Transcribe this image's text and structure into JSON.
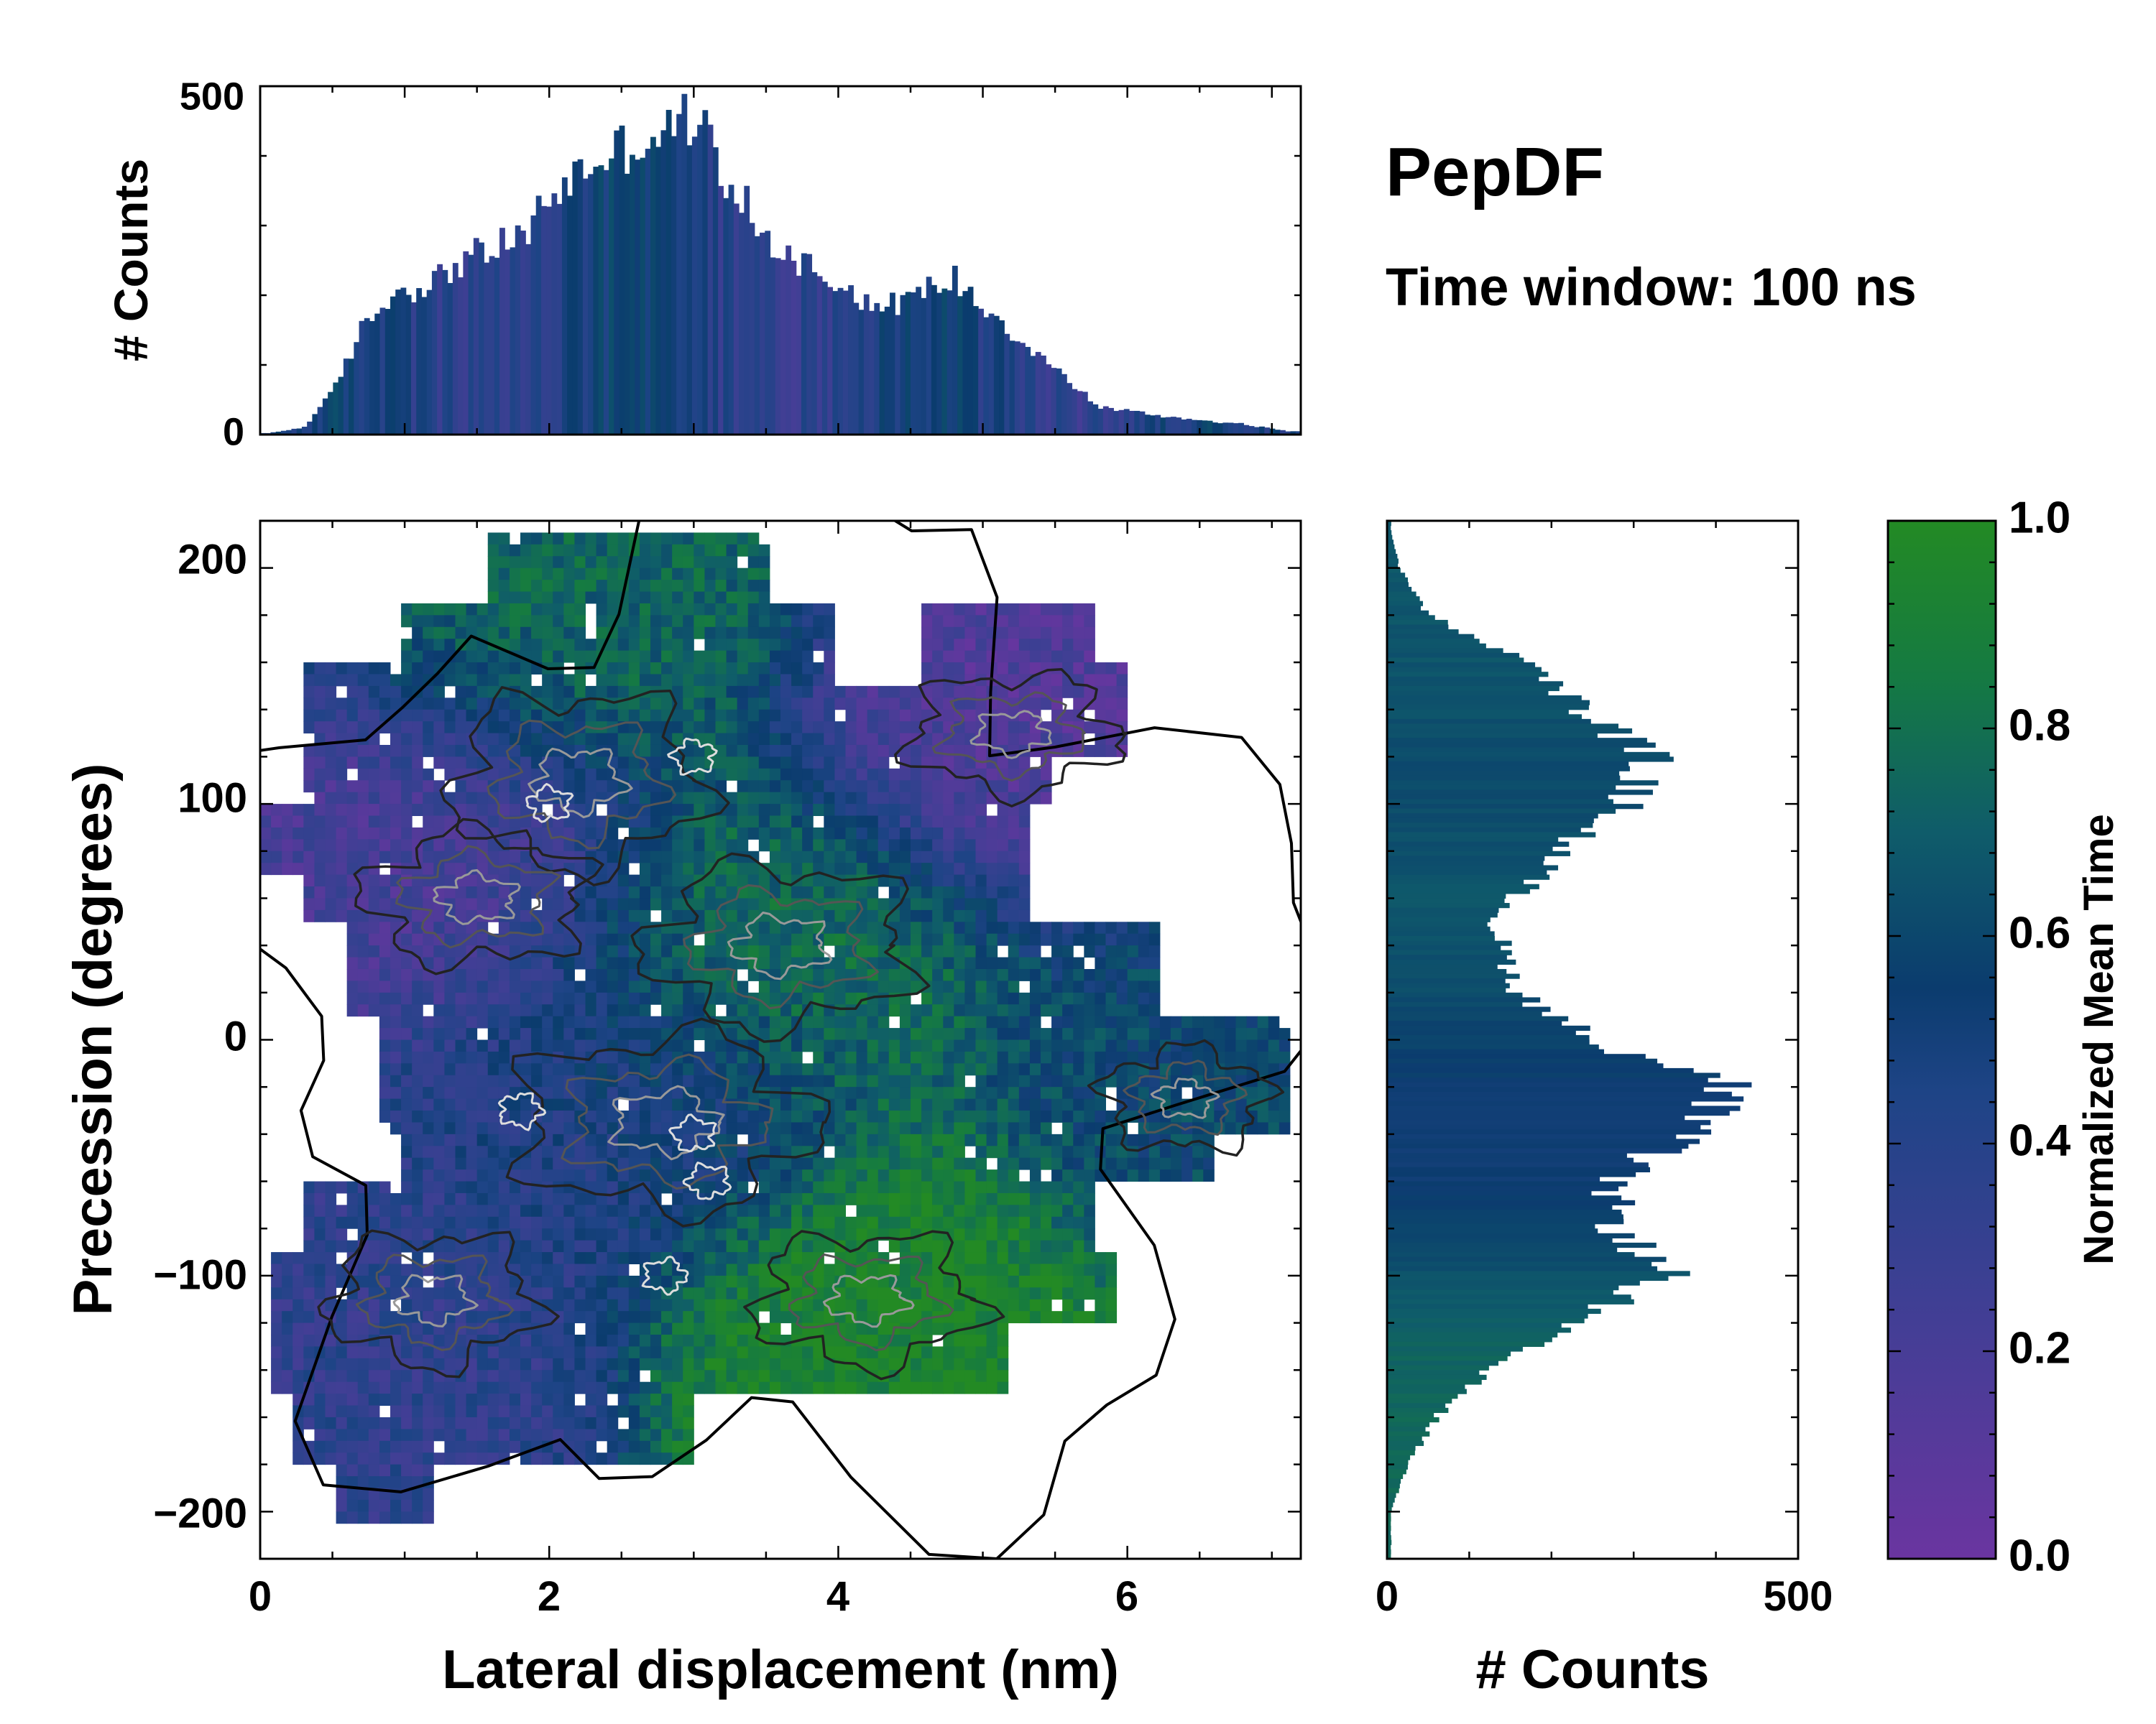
{
  "figure": {
    "title": "PepDF",
    "subtitle": "Time window: 100 ns"
  },
  "colors": {
    "purple": "#6a35a0",
    "blue": "#2a4a8c",
    "navy": "#0e3a6a",
    "teal": "#11606a",
    "green": "#1e8a2a",
    "frame": "#000000"
  },
  "chart_data": [
    {
      "name": "top-histogram",
      "type": "bar",
      "xlabel": "",
      "ylabel": "# Counts",
      "xlim": [
        0,
        7.2
      ],
      "ylim": [
        0,
        500
      ],
      "yticks": [
        "0",
        "500"
      ],
      "x_profile": [
        0.05,
        0.3,
        0.5,
        0.7,
        0.9,
        1.2,
        1.4,
        1.8,
        2.0,
        2.3,
        2.6,
        2.8,
        3.0,
        3.2,
        3.5,
        3.9,
        4.3,
        4.8,
        5.3,
        5.8,
        6.3,
        6.8,
        7.1
      ],
      "y_profile": [
        2,
        10,
        60,
        150,
        200,
        220,
        250,
        280,
        340,
        390,
        420,
        430,
        460,
        380,
        280,
        230,
        180,
        225,
        130,
        40,
        25,
        15,
        5
      ]
    },
    {
      "name": "main-heatmap",
      "type": "heatmap",
      "xlabel": "Lateral displacement (nm)",
      "ylabel": "Precession (degrees)",
      "xlim": [
        0,
        7.2
      ],
      "ylim": [
        -220,
        220
      ],
      "xticks": [
        "0",
        "2",
        "4",
        "6"
      ],
      "yticks": [
        "200",
        "100",
        "0",
        "−100",
        "−200"
      ],
      "regions": [
        {
          "label": "upper-left purple",
          "x": 1.2,
          "y": 80,
          "value": 0.2
        },
        {
          "label": "top green",
          "x": 2.2,
          "y": 175,
          "value": 0.75
        },
        {
          "label": "upper-right purple",
          "x": 5.2,
          "y": 130,
          "value": 0.15
        },
        {
          "label": "center green",
          "x": 3.6,
          "y": 40,
          "value": 0.8
        },
        {
          "label": "right teal lobe",
          "x": 6.6,
          "y": -20,
          "value": 0.6
        },
        {
          "label": "lower-left blue",
          "x": 0.9,
          "y": -120,
          "value": 0.35
        },
        {
          "label": "lower green",
          "x": 4.3,
          "y": -120,
          "value": 0.95
        },
        {
          "label": "center blue band",
          "x": 2.5,
          "y": -30,
          "value": 0.45
        }
      ]
    },
    {
      "name": "side-histogram",
      "type": "bar",
      "orientation": "horizontal",
      "xlabel": "# Counts",
      "xlim": [
        0,
        500
      ],
      "xticks": [
        "0",
        "500"
      ],
      "y_profile": [
        215,
        200,
        180,
        160,
        150,
        120,
        100,
        80,
        50,
        20,
        0,
        -20,
        -40,
        -60,
        -80,
        -100,
        -120,
        -140,
        -160,
        -180,
        -200
      ],
      "x_profile": [
        5,
        15,
        50,
        170,
        200,
        320,
        290,
        210,
        130,
        160,
        250,
        420,
        360,
        270,
        280,
        340,
        220,
        120,
        60,
        25,
        5
      ]
    },
    {
      "name": "colorbar",
      "type": "colorbar",
      "label": "Normalized Mean Time",
      "range": [
        0,
        1
      ],
      "ticks": [
        "0.0",
        "0.2",
        "0.4",
        "0.6",
        "0.8",
        "1.0"
      ]
    }
  ]
}
